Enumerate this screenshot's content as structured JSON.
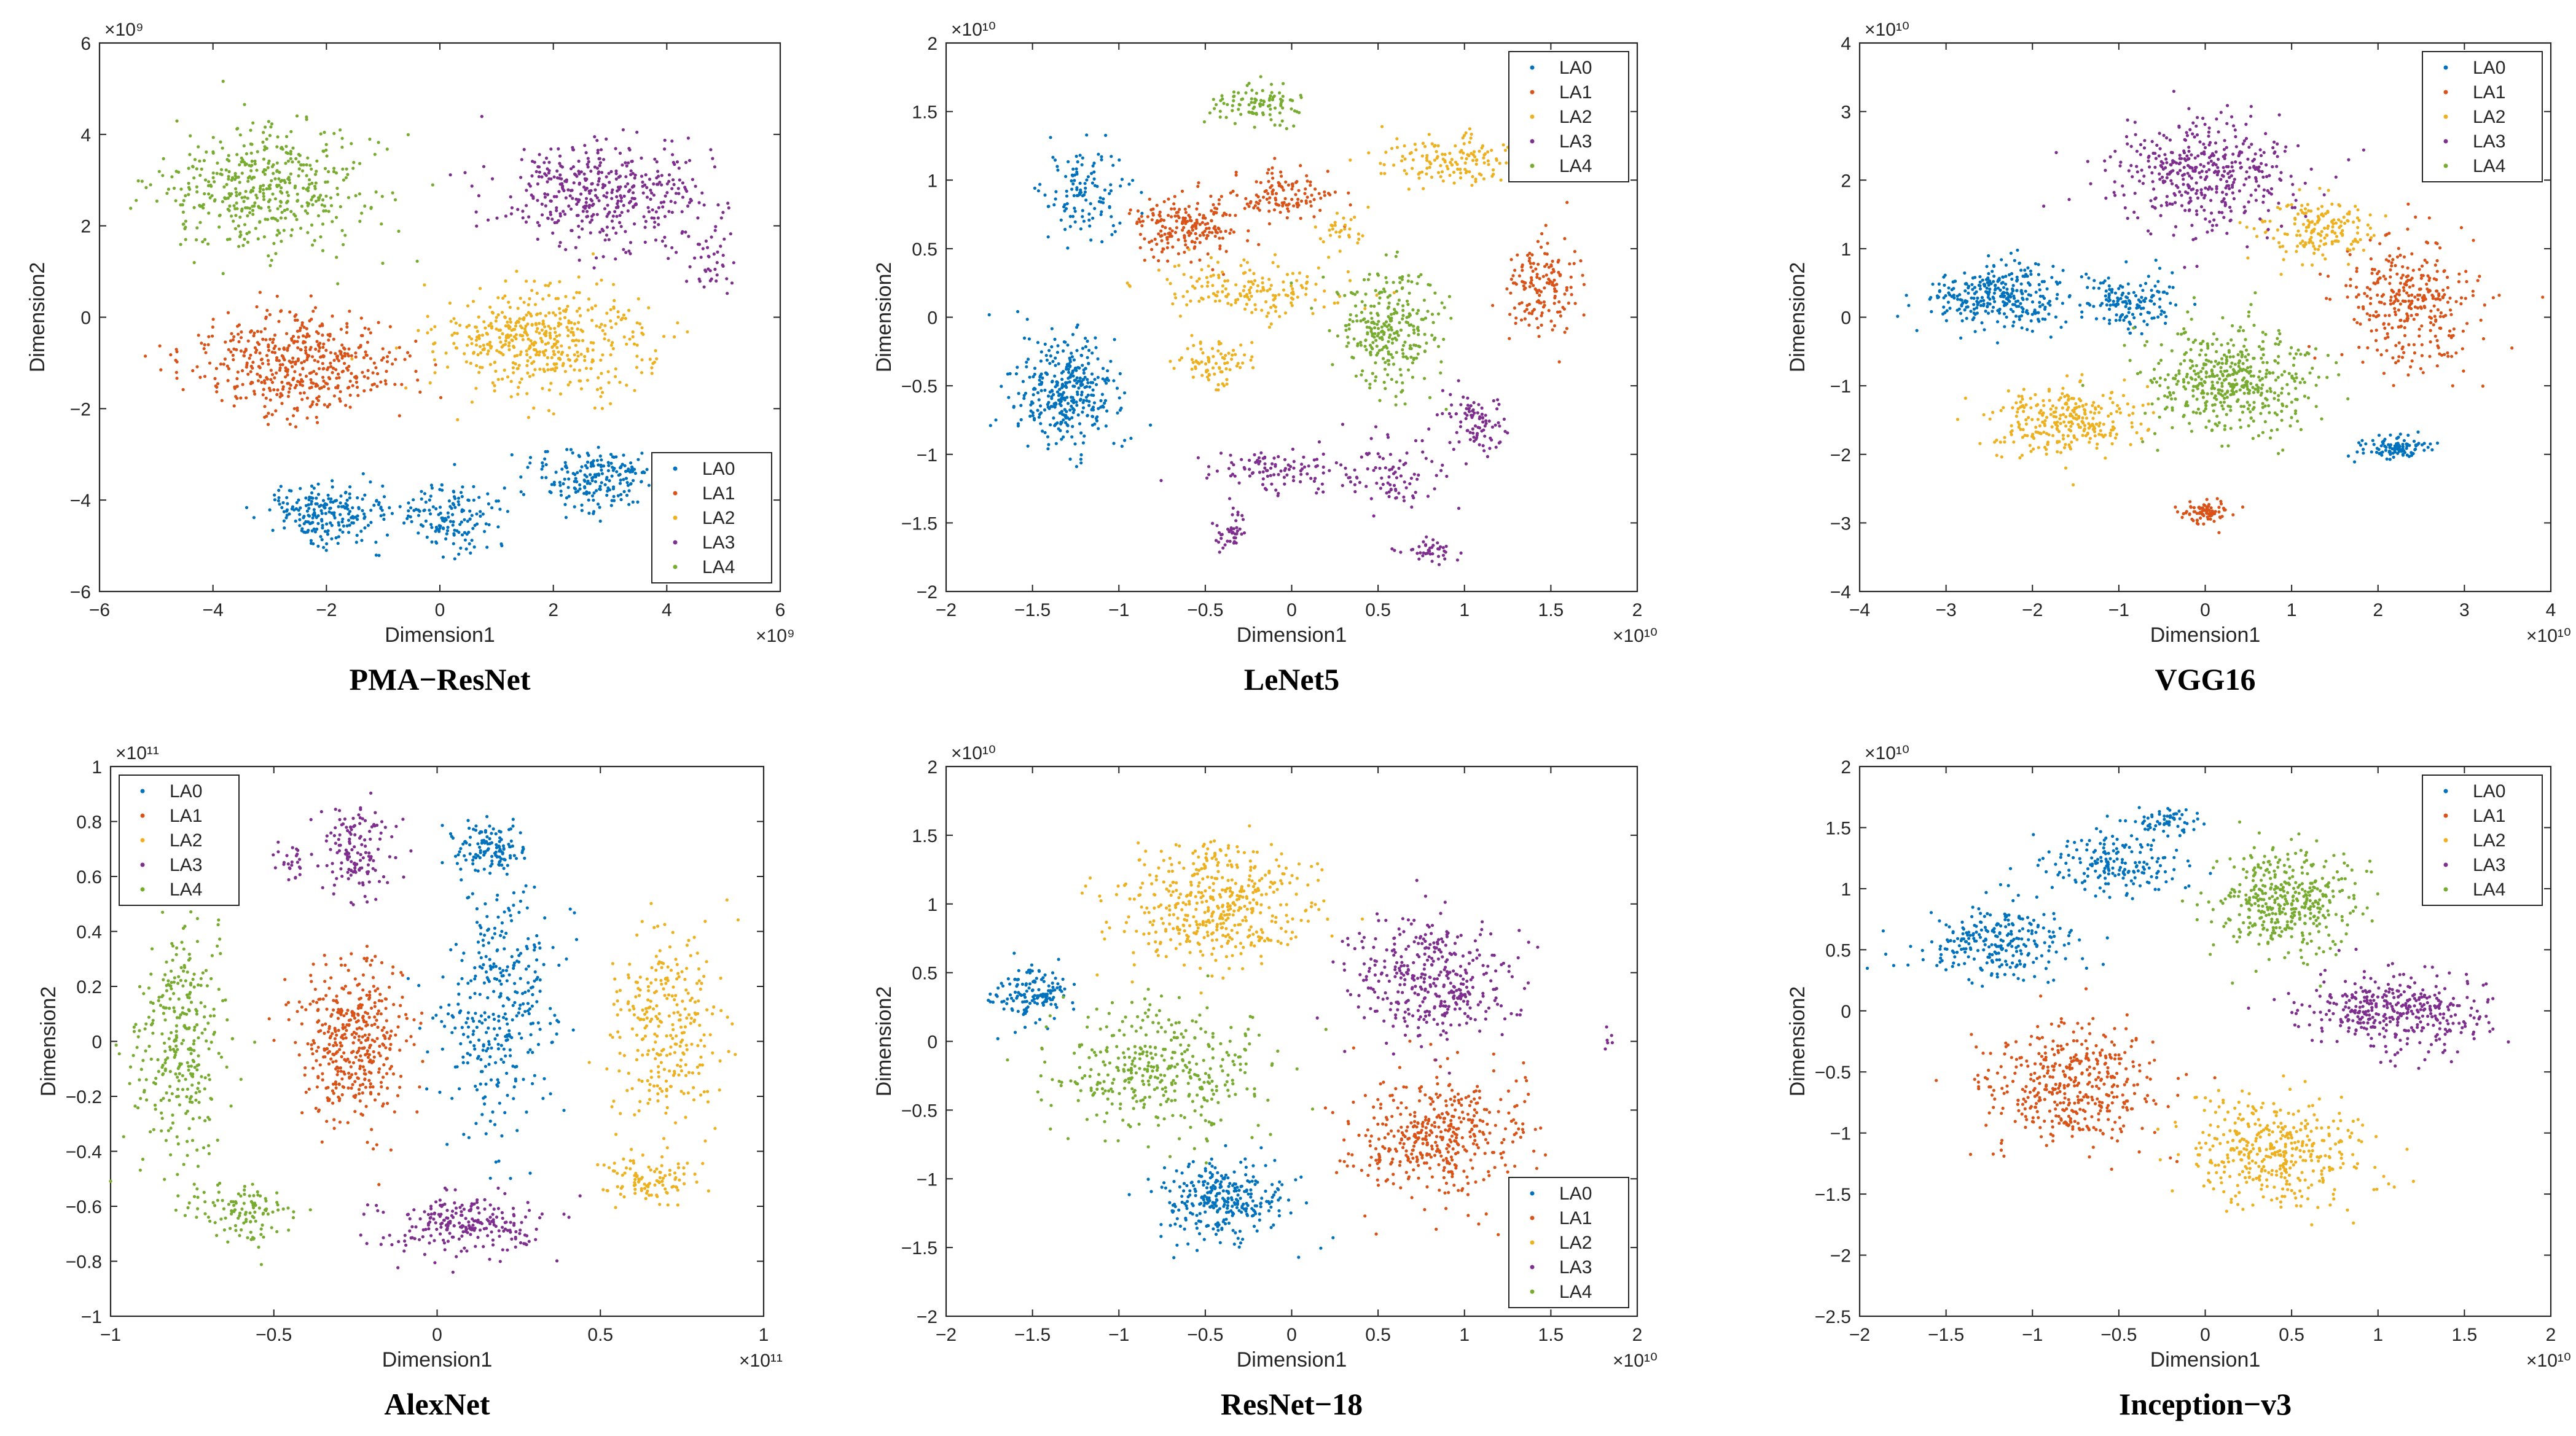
{
  "figure": {
    "series_names": [
      "LA0",
      "LA1",
      "LA2",
      "LA3",
      "LA4"
    ],
    "series_colors": [
      "#0072BD",
      "#D95319",
      "#EDB120",
      "#7E2F8E",
      "#77AC30"
    ]
  },
  "chart_data": [
    {
      "type": "scatter",
      "caption": "PMA−ResNet",
      "xlabel": "Dimension1",
      "ylabel": "Dimension2",
      "x_exponent": "×10⁹",
      "y_exponent": "×10⁹",
      "xlim": [
        -6,
        6
      ],
      "ylim": [
        -6,
        6
      ],
      "xticks": [
        -6,
        -4,
        -2,
        0,
        2,
        4,
        6
      ],
      "yticks": [
        -6,
        -4,
        -2,
        0,
        2,
        4,
        6
      ],
      "legend": "bottom-right",
      "clusters": [
        {
          "series": "LA0",
          "cx": -2.0,
          "cy": -4.3,
          "sx": 0.7,
          "sy": 0.45,
          "n": 220
        },
        {
          "series": "LA0",
          "cx": 0.2,
          "cy": -4.4,
          "sx": 0.6,
          "sy": 0.5,
          "n": 150
        },
        {
          "series": "LA0",
          "cx": 2.7,
          "cy": -3.5,
          "sx": 0.7,
          "sy": 0.45,
          "n": 200
        },
        {
          "series": "LA1",
          "cx": -2.5,
          "cy": -1.0,
          "sx": 1.3,
          "sy": 0.75,
          "n": 480
        },
        {
          "series": "LA2",
          "cx": 1.8,
          "cy": -0.5,
          "sx": 1.3,
          "sy": 0.8,
          "n": 480
        },
        {
          "series": "LA3",
          "cx": 2.9,
          "cy": 2.7,
          "sx": 1.3,
          "sy": 0.8,
          "n": 420
        },
        {
          "series": "LA3",
          "cx": 4.8,
          "cy": 1.3,
          "sx": 0.25,
          "sy": 0.5,
          "n": 40
        },
        {
          "series": "LA4",
          "cx": -3.0,
          "cy": 2.8,
          "sx": 1.3,
          "sy": 0.9,
          "n": 460
        }
      ]
    },
    {
      "type": "scatter",
      "caption": "LeNet5",
      "xlabel": "Dimension1",
      "ylabel": "Dimension2",
      "x_exponent": "×10¹⁰",
      "y_exponent": "×10¹⁰",
      "xlim": [
        -2,
        2
      ],
      "ylim": [
        -2,
        2
      ],
      "xticks": [
        -2,
        -1.5,
        -1,
        -0.5,
        0,
        0.5,
        1,
        1.5,
        2
      ],
      "yticks": [
        -2,
        -1.5,
        -1,
        -0.5,
        0,
        0.5,
        1,
        1.5,
        2
      ],
      "legend": "top-right",
      "clusters": [
        {
          "series": "LA0",
          "cx": -1.2,
          "cy": 0.9,
          "sx": 0.15,
          "sy": 0.22,
          "n": 120
        },
        {
          "series": "LA0",
          "cx": -1.3,
          "cy": -0.55,
          "sx": 0.22,
          "sy": 0.28,
          "n": 360
        },
        {
          "series": "LA1",
          "cx": -0.6,
          "cy": 0.65,
          "sx": 0.22,
          "sy": 0.16,
          "n": 200
        },
        {
          "series": "LA1",
          "cx": -0.05,
          "cy": 0.9,
          "sx": 0.2,
          "sy": 0.12,
          "n": 120
        },
        {
          "series": "LA1",
          "cx": 1.45,
          "cy": 0.2,
          "sx": 0.15,
          "sy": 0.25,
          "n": 150
        },
        {
          "series": "LA2",
          "cx": -0.2,
          "cy": 0.2,
          "sx": 0.38,
          "sy": 0.15,
          "n": 160
        },
        {
          "series": "LA2",
          "cx": -0.45,
          "cy": -0.35,
          "sx": 0.15,
          "sy": 0.12,
          "n": 80
        },
        {
          "series": "LA2",
          "cx": 0.9,
          "cy": 1.15,
          "sx": 0.28,
          "sy": 0.12,
          "n": 140
        },
        {
          "series": "LA2",
          "cx": 0.3,
          "cy": 0.65,
          "sx": 0.1,
          "sy": 0.1,
          "n": 30
        },
        {
          "series": "LA3",
          "cx": -0.1,
          "cy": -1.1,
          "sx": 0.25,
          "sy": 0.12,
          "n": 100
        },
        {
          "series": "LA3",
          "cx": 0.55,
          "cy": -1.15,
          "sx": 0.2,
          "sy": 0.2,
          "n": 90
        },
        {
          "series": "LA3",
          "cx": 1.05,
          "cy": -0.75,
          "sx": 0.15,
          "sy": 0.15,
          "n": 90
        },
        {
          "series": "LA3",
          "cx": -0.35,
          "cy": -1.55,
          "sx": 0.06,
          "sy": 0.08,
          "n": 40
        },
        {
          "series": "LA3",
          "cx": 0.8,
          "cy": -1.7,
          "sx": 0.12,
          "sy": 0.05,
          "n": 40
        },
        {
          "series": "LA4",
          "cx": 0.55,
          "cy": -0.1,
          "sx": 0.2,
          "sy": 0.3,
          "n": 280
        },
        {
          "series": "LA4",
          "cx": -0.2,
          "cy": 1.55,
          "sx": 0.2,
          "sy": 0.1,
          "n": 100
        }
      ]
    },
    {
      "type": "scatter",
      "caption": "VGG16",
      "xlabel": "Dimension1",
      "ylabel": "Dimension2",
      "x_exponent": "×10¹⁰",
      "y_exponent": "×10¹⁰",
      "xlim": [
        -4,
        4
      ],
      "ylim": [
        -4,
        4
      ],
      "xticks": [
        -4,
        -3,
        -2,
        -1,
        0,
        1,
        2,
        3,
        4
      ],
      "yticks": [
        -4,
        -3,
        -2,
        -1,
        0,
        1,
        2,
        3,
        4
      ],
      "legend": "top-right",
      "clusters": [
        {
          "series": "LA0",
          "cx": -2.4,
          "cy": 0.3,
          "sx": 0.6,
          "sy": 0.35,
          "n": 320
        },
        {
          "series": "LA0",
          "cx": -0.9,
          "cy": 0.2,
          "sx": 0.35,
          "sy": 0.3,
          "n": 140
        },
        {
          "series": "LA0",
          "cx": 2.2,
          "cy": -1.9,
          "sx": 0.3,
          "sy": 0.15,
          "n": 100
        },
        {
          "series": "LA1",
          "cx": 2.4,
          "cy": 0.2,
          "sx": 0.5,
          "sy": 0.65,
          "n": 330
        },
        {
          "series": "LA1",
          "cx": 0.0,
          "cy": -2.85,
          "sx": 0.2,
          "sy": 0.12,
          "n": 80
        },
        {
          "series": "LA2",
          "cx": -1.6,
          "cy": -1.5,
          "sx": 0.6,
          "sy": 0.35,
          "n": 280
        },
        {
          "series": "LA2",
          "cx": 1.3,
          "cy": 1.3,
          "sx": 0.45,
          "sy": 0.3,
          "n": 170
        },
        {
          "series": "LA3",
          "cx": 0.0,
          "cy": 2.1,
          "sx": 0.75,
          "sy": 0.55,
          "n": 420
        },
        {
          "series": "LA4",
          "cx": 0.3,
          "cy": -0.9,
          "sx": 0.7,
          "sy": 0.55,
          "n": 460
        }
      ]
    },
    {
      "type": "scatter",
      "caption": "AlexNet",
      "xlabel": "Dimension1",
      "ylabel": "Dimension2",
      "x_exponent": "×10¹¹",
      "y_exponent": "×10¹¹",
      "xlim": [
        -1,
        1
      ],
      "ylim": [
        -1,
        1
      ],
      "xticks": [
        -1,
        -0.5,
        0,
        0.5,
        1
      ],
      "yticks": [
        -1,
        -0.8,
        -0.6,
        -0.4,
        -0.2,
        0,
        0.2,
        0.4,
        0.6,
        0.8,
        1
      ],
      "legend": "top-left",
      "clusters": [
        {
          "series": "LA0",
          "cx": 0.15,
          "cy": 0.7,
          "sx": 0.08,
          "sy": 0.07,
          "n": 120
        },
        {
          "series": "LA0",
          "cx": 0.2,
          "cy": 0.15,
          "sx": 0.12,
          "sy": 0.3,
          "n": 340
        },
        {
          "series": "LA1",
          "cx": -0.25,
          "cy": 0.0,
          "sx": 0.12,
          "sy": 0.2,
          "n": 420
        },
        {
          "series": "LA2",
          "cx": 0.7,
          "cy": 0.05,
          "sx": 0.12,
          "sy": 0.25,
          "n": 280
        },
        {
          "series": "LA2",
          "cx": 0.65,
          "cy": -0.5,
          "sx": 0.1,
          "sy": 0.06,
          "n": 100
        },
        {
          "series": "LA3",
          "cx": -0.25,
          "cy": 0.7,
          "sx": 0.08,
          "sy": 0.12,
          "n": 140
        },
        {
          "series": "LA3",
          "cx": -0.45,
          "cy": 0.65,
          "sx": 0.04,
          "sy": 0.05,
          "n": 25
        },
        {
          "series": "LA3",
          "cx": 0.1,
          "cy": -0.67,
          "sx": 0.18,
          "sy": 0.08,
          "n": 230
        },
        {
          "series": "LA4",
          "cx": -0.78,
          "cy": 0.0,
          "sx": 0.1,
          "sy": 0.3,
          "n": 320
        },
        {
          "series": "LA4",
          "cx": -0.6,
          "cy": -0.62,
          "sx": 0.1,
          "sy": 0.08,
          "n": 110
        }
      ]
    },
    {
      "type": "scatter",
      "caption": "ResNet−18",
      "xlabel": "Dimension1",
      "ylabel": "Dimension2",
      "x_exponent": "×10¹⁰",
      "y_exponent": "×10¹⁰",
      "xlim": [
        -2,
        2
      ],
      "ylim": [
        -2,
        2
      ],
      "xticks": [
        -2,
        -1.5,
        -1,
        -0.5,
        0,
        0.5,
        1,
        1.5,
        2
      ],
      "yticks": [
        -2,
        -1.5,
        -1,
        -0.5,
        0,
        0.5,
        1,
        1.5,
        2
      ],
      "legend": "bottom-right",
      "clusters": [
        {
          "series": "LA0",
          "cx": -1.5,
          "cy": 0.35,
          "sx": 0.15,
          "sy": 0.15,
          "n": 140
        },
        {
          "series": "LA0",
          "cx": -0.4,
          "cy": -1.15,
          "sx": 0.25,
          "sy": 0.2,
          "n": 300
        },
        {
          "series": "LA1",
          "cx": 0.85,
          "cy": -0.7,
          "sx": 0.35,
          "sy": 0.3,
          "n": 420
        },
        {
          "series": "LA2",
          "cx": -0.45,
          "cy": 1.0,
          "sx": 0.4,
          "sy": 0.3,
          "n": 450
        },
        {
          "series": "LA3",
          "cx": 0.8,
          "cy": 0.45,
          "sx": 0.3,
          "sy": 0.3,
          "n": 380
        },
        {
          "series": "LA3",
          "cx": 1.85,
          "cy": 0.0,
          "sx": 0.05,
          "sy": 0.05,
          "n": 6
        },
        {
          "series": "LA4",
          "cx": -0.8,
          "cy": -0.2,
          "sx": 0.4,
          "sy": 0.3,
          "n": 380
        }
      ]
    },
    {
      "type": "scatter",
      "caption": "Inception−v3",
      "xlabel": "Dimension1",
      "ylabel": "Dimension2",
      "x_exponent": "×10¹⁰",
      "y_exponent": "×10¹⁰",
      "xlim": [
        -2,
        2
      ],
      "ylim": [
        -2.5,
        2
      ],
      "xticks": [
        -2,
        -1.5,
        -1,
        -0.5,
        0,
        0.5,
        1,
        1.5,
        2
      ],
      "yticks": [
        -2.5,
        -2,
        -1.5,
        -1,
        -0.5,
        0,
        0.5,
        1,
        1.5,
        2
      ],
      "legend": "top-right",
      "clusters": [
        {
          "series": "LA0",
          "cx": -1.2,
          "cy": 0.55,
          "sx": 0.3,
          "sy": 0.2,
          "n": 250
        },
        {
          "series": "LA0",
          "cx": -0.55,
          "cy": 1.2,
          "sx": 0.28,
          "sy": 0.18,
          "n": 180
        },
        {
          "series": "LA0",
          "cx": -0.2,
          "cy": 1.55,
          "sx": 0.12,
          "sy": 0.06,
          "n": 60
        },
        {
          "series": "LA1",
          "cx": -0.75,
          "cy": -0.6,
          "sx": 0.35,
          "sy": 0.35,
          "n": 420
        },
        {
          "series": "LA2",
          "cx": 0.4,
          "cy": -1.15,
          "sx": 0.35,
          "sy": 0.3,
          "n": 400
        },
        {
          "series": "LA3",
          "cx": 1.1,
          "cy": 0.0,
          "sx": 0.35,
          "sy": 0.22,
          "n": 380
        },
        {
          "series": "LA4",
          "cx": 0.45,
          "cy": 0.9,
          "sx": 0.3,
          "sy": 0.3,
          "n": 400
        }
      ]
    }
  ]
}
